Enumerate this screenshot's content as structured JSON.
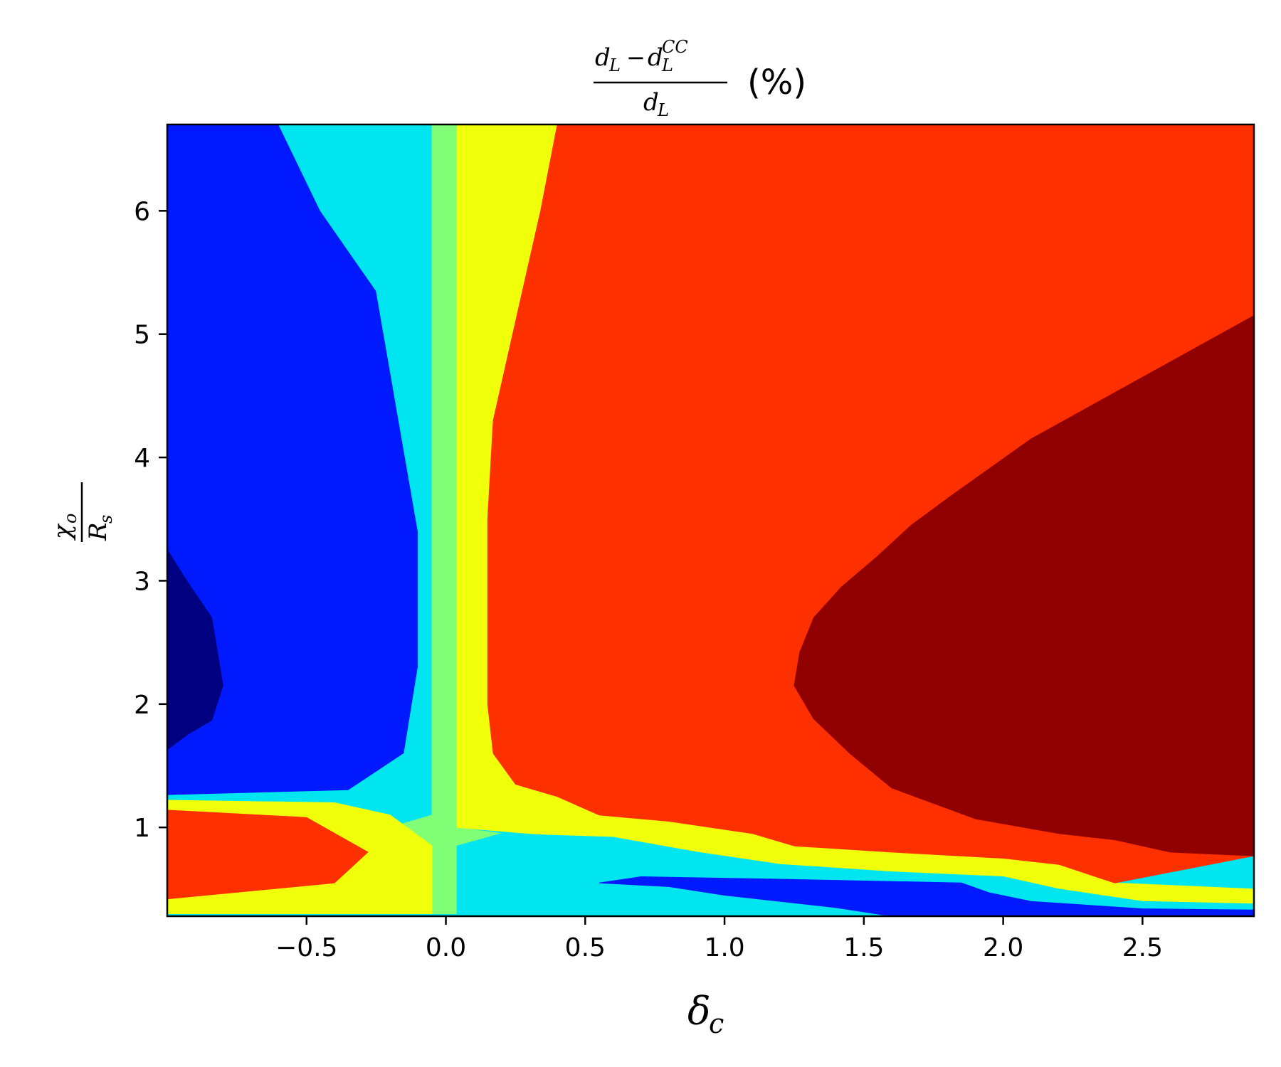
{
  "chart_data": {
    "type": "heatmap",
    "subtype": "filled-contour",
    "colormap": "jet",
    "title": {
      "numerator_base": "d",
      "numerator_sub": "L",
      "minus": "−",
      "subtracted_base": "d",
      "subtracted_sub": "L",
      "subtracted_sup": "CC",
      "denominator_base": "d",
      "denominator_sub": "L",
      "suffix": "(%)"
    },
    "xlabel": {
      "base": "δ",
      "sub": "c"
    },
    "ylabel": {
      "numerator_base": "χ",
      "numerator_sub": "o",
      "denominator_base": "R",
      "denominator_sub": "s"
    },
    "xlim": [
      -1.0,
      2.9
    ],
    "ylim": [
      0.28,
      6.7
    ],
    "xticks": [
      -0.5,
      0.0,
      0.5,
      1.0,
      1.5,
      2.0,
      2.5
    ],
    "xtick_labels": [
      "−0.5",
      "0.0",
      "0.5",
      "1.0",
      "1.5",
      "2.0",
      "2.5"
    ],
    "yticks": [
      1,
      2,
      3,
      4,
      5,
      6
    ],
    "ytick_labels": [
      "1",
      "2",
      "3",
      "4",
      "5",
      "6"
    ],
    "grid": false,
    "regions": [
      {
        "name": "blue-region",
        "color": "#0019ff",
        "points": [
          [
            -1,
            6.7
          ],
          [
            -0.6,
            6.7
          ],
          [
            -0.45,
            6.0
          ],
          [
            -0.25,
            5.35
          ],
          [
            -0.1,
            3.4
          ],
          [
            -0.1,
            2.3
          ],
          [
            -0.15,
            1.6
          ],
          [
            -0.35,
            1.3
          ],
          [
            -1,
            1.26
          ]
        ]
      },
      {
        "name": "navy-region",
        "color": "#000080",
        "points": [
          [
            -1,
            3.25
          ],
          [
            -0.93,
            3.0
          ],
          [
            -0.84,
            2.7
          ],
          [
            -0.8,
            2.15
          ],
          [
            -0.84,
            1.87
          ],
          [
            -0.93,
            1.75
          ],
          [
            -1,
            1.63
          ]
        ]
      },
      {
        "name": "cyan-vertical-band",
        "color": "#00e5f0",
        "points": [
          [
            -0.6,
            6.7
          ],
          [
            -0.05,
            6.7
          ],
          [
            -0.05,
            1.1
          ],
          [
            -0.2,
            1.1
          ],
          [
            -0.4,
            1.2
          ],
          [
            -1,
            1.22
          ],
          [
            -1,
            1.26
          ],
          [
            -0.35,
            1.3
          ],
          [
            -0.15,
            1.6
          ],
          [
            -0.1,
            2.3
          ],
          [
            -0.1,
            3.4
          ],
          [
            -0.25,
            5.35
          ],
          [
            -0.45,
            6.0
          ]
        ]
      },
      {
        "name": "green-vertical-band",
        "color": "#80ff77",
        "points": [
          [
            -0.05,
            6.7
          ],
          [
            0.04,
            6.7
          ],
          [
            0.04,
            1.0
          ],
          [
            0.2,
            0.95
          ],
          [
            0.04,
            0.85
          ],
          [
            0.04,
            0.3
          ],
          [
            -0.05,
            0.3
          ],
          [
            -0.05,
            0.85
          ],
          [
            -0.2,
            1.0
          ],
          [
            -0.05,
            1.1
          ]
        ]
      },
      {
        "name": "yellow-vertical-band",
        "color": "#f0ff0a",
        "points": [
          [
            0.04,
            6.7
          ],
          [
            0.4,
            6.7
          ],
          [
            0.34,
            6.0
          ],
          [
            0.26,
            5.2
          ],
          [
            0.17,
            4.3
          ],
          [
            0.15,
            3.5
          ],
          [
            0.15,
            2.0
          ],
          [
            0.17,
            1.6
          ],
          [
            0.25,
            1.35
          ],
          [
            0.4,
            1.25
          ],
          [
            0.55,
            1.1
          ],
          [
            0.8,
            1.05
          ],
          [
            1.1,
            0.95
          ],
          [
            1.25,
            0.85
          ],
          [
            1.6,
            0.8
          ],
          [
            2.0,
            0.75
          ],
          [
            2.2,
            0.7
          ],
          [
            2.4,
            0.55
          ],
          [
            2.9,
            0.5
          ],
          [
            2.9,
            0.38
          ],
          [
            2.5,
            0.4
          ],
          [
            2.2,
            0.5
          ],
          [
            2.0,
            0.6
          ],
          [
            1.6,
            0.64
          ],
          [
            1.2,
            0.7
          ],
          [
            0.9,
            0.8
          ],
          [
            0.6,
            0.9
          ],
          [
            0.3,
            0.95
          ],
          [
            0.04,
            1.0
          ]
        ]
      },
      {
        "name": "red-main-region",
        "color": "#ff3000",
        "points": [
          [
            0.4,
            6.7
          ],
          [
            2.9,
            6.7
          ],
          [
            2.9,
            0.77
          ],
          [
            2.6,
            0.8
          ],
          [
            2.4,
            0.9
          ],
          [
            2.2,
            0.95
          ],
          [
            1.9,
            1.07
          ],
          [
            1.6,
            1.32
          ],
          [
            1.45,
            1.6
          ],
          [
            1.32,
            1.88
          ],
          [
            1.25,
            2.15
          ],
          [
            1.27,
            2.42
          ],
          [
            1.32,
            2.7
          ],
          [
            1.42,
            2.95
          ],
          [
            1.55,
            3.2
          ],
          [
            1.67,
            3.45
          ],
          [
            1.82,
            3.7
          ],
          [
            2.1,
            4.15
          ],
          [
            2.42,
            4.55
          ],
          [
            2.9,
            5.15
          ],
          [
            2.9,
            0.77
          ],
          [
            2.4,
            0.55
          ],
          [
            2.2,
            0.7
          ],
          [
            2.0,
            0.75
          ],
          [
            1.6,
            0.8
          ],
          [
            1.25,
            0.85
          ],
          [
            1.1,
            0.95
          ],
          [
            0.8,
            1.05
          ],
          [
            0.55,
            1.1
          ],
          [
            0.4,
            1.25
          ],
          [
            0.25,
            1.35
          ],
          [
            0.17,
            1.6
          ],
          [
            0.15,
            2.0
          ],
          [
            0.15,
            3.5
          ],
          [
            0.17,
            4.3
          ],
          [
            0.26,
            5.2
          ],
          [
            0.34,
            6.0
          ]
        ]
      },
      {
        "name": "dark-red-region",
        "color": "#900000",
        "points": [
          [
            2.9,
            5.15
          ],
          [
            2.42,
            4.55
          ],
          [
            2.1,
            4.15
          ],
          [
            1.82,
            3.7
          ],
          [
            1.67,
            3.45
          ],
          [
            1.55,
            3.2
          ],
          [
            1.42,
            2.95
          ],
          [
            1.32,
            2.7
          ],
          [
            1.27,
            2.42
          ],
          [
            1.25,
            2.15
          ],
          [
            1.32,
            1.88
          ],
          [
            1.45,
            1.6
          ],
          [
            1.6,
            1.32
          ],
          [
            1.9,
            1.07
          ],
          [
            2.2,
            0.95
          ],
          [
            2.4,
            0.9
          ],
          [
            2.6,
            0.8
          ],
          [
            2.9,
            0.77
          ]
        ]
      },
      {
        "name": "yellow-left-lobe",
        "color": "#f0ff0a",
        "points": [
          [
            -1,
            1.22
          ],
          [
            -0.4,
            1.2
          ],
          [
            -0.2,
            1.1
          ],
          [
            -0.05,
            0.85
          ],
          [
            -0.05,
            0.3
          ],
          [
            -1,
            0.3
          ],
          [
            -1,
            0.42
          ],
          [
            -0.4,
            0.55
          ],
          [
            -0.28,
            0.8
          ],
          [
            -0.5,
            1.08
          ],
          [
            -1,
            1.14
          ]
        ]
      },
      {
        "name": "red-left-lobe",
        "color": "#ff3000",
        "points": [
          [
            -1,
            1.14
          ],
          [
            -0.5,
            1.08
          ],
          [
            -0.28,
            0.8
          ],
          [
            -0.4,
            0.55
          ],
          [
            -1,
            0.42
          ]
        ]
      },
      {
        "name": "cyan-bottom-band",
        "color": "#00e5f0",
        "points": [
          [
            0.04,
            0.3
          ],
          [
            0.04,
            0.85
          ],
          [
            0.2,
            0.95
          ],
          [
            0.6,
            0.92
          ],
          [
            0.9,
            0.8
          ],
          [
            1.2,
            0.7
          ],
          [
            1.6,
            0.64
          ],
          [
            2.0,
            0.6
          ],
          [
            2.2,
            0.5
          ],
          [
            2.5,
            0.4
          ],
          [
            2.9,
            0.38
          ],
          [
            2.9,
            0.28
          ],
          [
            0.04,
            0.28
          ]
        ]
      },
      {
        "name": "blue-bottom-sliver",
        "color": "#0019ff",
        "points": [
          [
            0.55,
            0.55
          ],
          [
            0.7,
            0.6
          ],
          [
            1.2,
            0.58
          ],
          [
            1.85,
            0.55
          ],
          [
            1.95,
            0.47
          ],
          [
            2.1,
            0.4
          ],
          [
            2.5,
            0.34
          ],
          [
            2.9,
            0.33
          ],
          [
            2.9,
            0.28
          ],
          [
            1.6,
            0.28
          ],
          [
            1.4,
            0.35
          ],
          [
            1.0,
            0.45
          ],
          [
            0.8,
            0.52
          ]
        ]
      }
    ],
    "colors": {
      "axes": "#000000",
      "background": "#ffffff"
    }
  }
}
